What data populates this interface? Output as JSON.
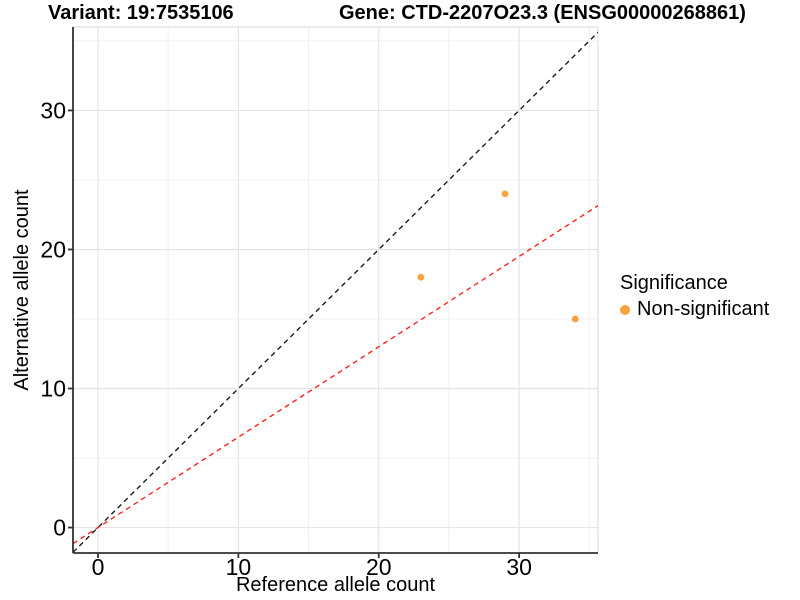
{
  "chart_data": {
    "type": "scatter",
    "title_left": "Variant: 19:7535106",
    "title_right": "Gene: CTD-2207O23.3 (ENSG00000268861)",
    "xlabel": "Reference allele count",
    "ylabel": "Alternative allele count",
    "xlim": [
      -1.78,
      35.62
    ],
    "ylim": [
      -1.83,
      36.0
    ],
    "x_major_ticks": [
      0,
      10,
      20,
      30
    ],
    "y_major_ticks": [
      0,
      10,
      20,
      30
    ],
    "x_minor_gridlines": [
      5,
      15,
      25,
      35
    ],
    "y_minor_gridlines": [
      5,
      15,
      25,
      35
    ],
    "grid": "major+minor",
    "legend": {
      "position": "right",
      "title": "Significance",
      "items": [
        {
          "label": "Non-significant",
          "marker": "circle",
          "color": "#F9A23B"
        }
      ]
    },
    "series": [
      {
        "name": "Non-significant",
        "marker": "circle",
        "color": "#F9A23B",
        "points": [
          {
            "x": 23,
            "y": 18
          },
          {
            "x": 29,
            "y": 24
          },
          {
            "x": 34,
            "y": 15
          }
        ]
      }
    ],
    "reference_lines": [
      {
        "name": "identity-line",
        "slope": 1,
        "intercept": 0,
        "color": "#1A1A1A",
        "dash": "dashed"
      },
      {
        "name": "ratio-line",
        "slope": 0.65,
        "intercept": 0,
        "color": "#FF2222",
        "dash": "dashed"
      }
    ],
    "colors": {
      "background": "#FFFFFF",
      "panel_background": "#FFFFFF",
      "grid_major": "#E4E4E4",
      "grid_minor": "#F0F0F0",
      "panel_border": "#D8D8D8",
      "axis_line": "#333333",
      "tick_mark": "#333333",
      "text": "#000000"
    }
  }
}
